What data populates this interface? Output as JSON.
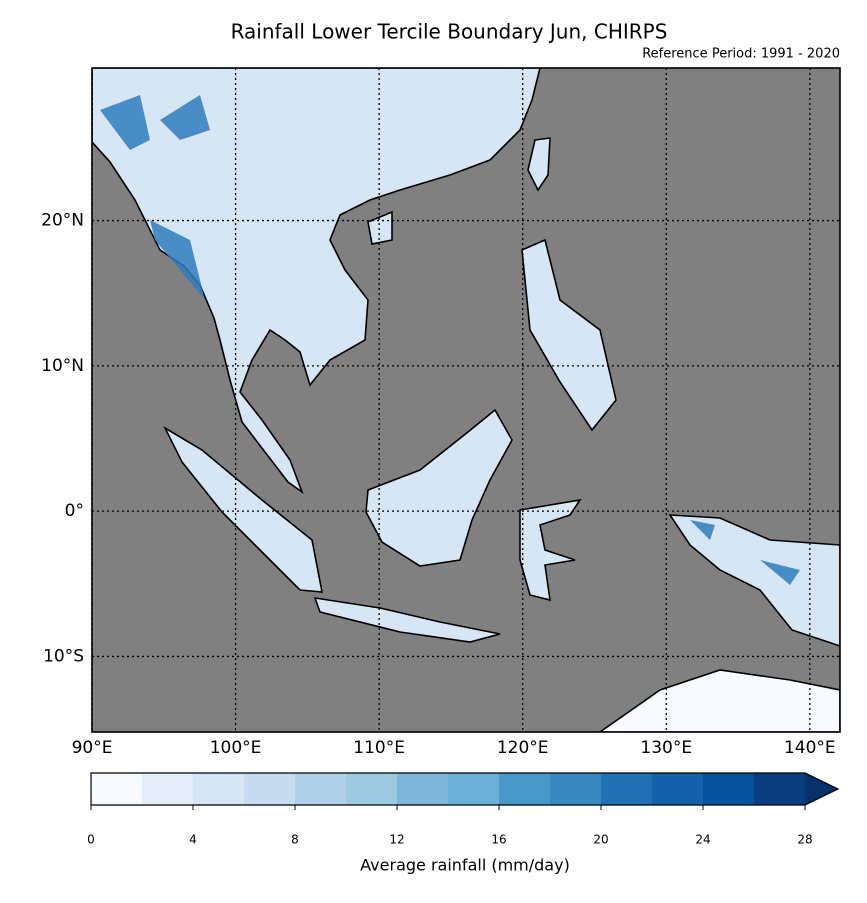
{
  "title": "Rainfall Lower Tercile Boundary Jun, CHIRPS",
  "subtitle": "Reference Period: 1991 - 2020",
  "map": {
    "background": "#808080",
    "land_color": "#d6e6f4",
    "xlim": [
      90,
      142.1
    ],
    "ylim": [
      -15.2,
      30.5
    ],
    "xticks": [
      {
        "value": 90,
        "label": "90°E"
      },
      {
        "value": 100,
        "label": "100°E"
      },
      {
        "value": 110,
        "label": "110°E"
      },
      {
        "value": 120,
        "label": "120°E"
      },
      {
        "value": 130,
        "label": "130°E"
      },
      {
        "value": 140,
        "label": "140°E"
      }
    ],
    "yticks": [
      {
        "value": 20,
        "label": "20°N"
      },
      {
        "value": 10,
        "label": "10°N"
      },
      {
        "value": 0,
        "label": "0°"
      },
      {
        "value": -10,
        "label": "10°S"
      }
    ],
    "grid": true
  },
  "colorbar": {
    "label": "Average rainfall (mm/day)",
    "lim": [
      0,
      28
    ],
    "ticks": [
      0,
      4,
      8,
      12,
      16,
      20,
      24,
      28
    ],
    "bins": [
      0,
      2,
      4,
      6,
      8,
      10,
      12,
      14,
      16,
      18,
      20,
      22,
      24,
      26,
      28
    ],
    "colors": [
      "#f7fbff",
      "#e3eef9",
      "#d6e6f4",
      "#c6dbef",
      "#b0d2e8",
      "#9ecae1",
      "#7db8da",
      "#6baed6",
      "#4a98c9",
      "#3a87c0",
      "#2171b5",
      "#1561a9",
      "#08519c",
      "#083e80"
    ],
    "extend_color": "#08306b"
  }
}
